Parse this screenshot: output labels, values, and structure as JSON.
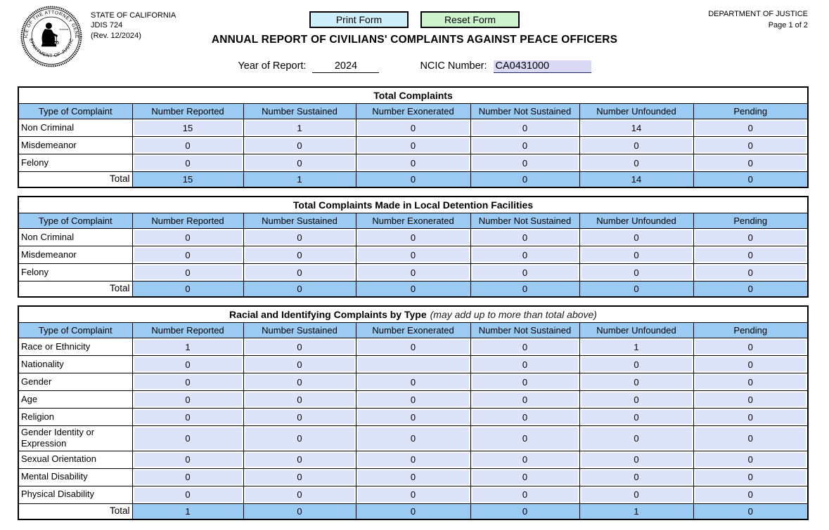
{
  "page": {
    "agency_block": {
      "line1": "STATE OF CALIFORNIA",
      "line2": "JDIS 724",
      "line3": "(Rev. 12/2024)"
    },
    "doj_block": {
      "line1": "DEPARTMENT OF JUSTICE",
      "line2": "Page 1 of 2"
    },
    "buttons": {
      "print": "Print Form",
      "reset": "Reset Form"
    },
    "title": "ANNUAL REPORT OF CIVILIANS' COMPLAINTS AGAINST PEACE OFFICERS",
    "fields": {
      "year_label": "Year of Report:",
      "year_value": "2024",
      "ncic_label": "NCIC Number:",
      "ncic_value": "CA0431000"
    },
    "seal": {
      "arc_top": "OFFICE OF THE ATTORNEY GENERAL",
      "arc_bottom": "DEPARTMENT OF JUSTICE",
      "motto": "liberty and justice under law"
    }
  },
  "colors": {
    "header_blue": "#9bcbf3",
    "field_lavender": "#dde3f9",
    "ncic_highlight": "#d9d9f6",
    "print_button": "#cdeffb",
    "reset_button": "#cdf4cd"
  },
  "columns": [
    "Type of Complaint",
    "Number Reported",
    "Number Sustained",
    "Number Exonerated",
    "Number Not Sustained",
    "Number Unfounded",
    "Pending"
  ],
  "tables": [
    {
      "title": "Total Complaints",
      "note": "",
      "rows": [
        {
          "label": "Non Criminal",
          "values": [
            "15",
            "1",
            "0",
            "0",
            "14",
            "0"
          ]
        },
        {
          "label": "Misdemeanor",
          "values": [
            "0",
            "0",
            "0",
            "0",
            "0",
            "0"
          ]
        },
        {
          "label": "Felony",
          "values": [
            "0",
            "0",
            "0",
            "0",
            "0",
            "0"
          ]
        }
      ],
      "total": {
        "label": "Total",
        "values": [
          "15",
          "1",
          "0",
          "0",
          "14",
          "0"
        ]
      }
    },
    {
      "title": "Total Complaints Made in Local Detention Facilities",
      "note": "",
      "rows": [
        {
          "label": "Non Criminal",
          "values": [
            "0",
            "0",
            "0",
            "0",
            "0",
            "0"
          ]
        },
        {
          "label": "Misdemeanor",
          "values": [
            "0",
            "0",
            "0",
            "0",
            "0",
            "0"
          ]
        },
        {
          "label": "Felony",
          "values": [
            "0",
            "0",
            "0",
            "0",
            "0",
            "0"
          ]
        }
      ],
      "total": {
        "label": "Total",
        "values": [
          "0",
          "0",
          "0",
          "0",
          "0",
          "0"
        ]
      }
    },
    {
      "title": "Racial and Identifying Complaints by Type",
      "note": "(may add up to more than total above)",
      "rows": [
        {
          "label": "Race or Ethnicity",
          "values": [
            "1",
            "0",
            "0",
            "0",
            "1",
            "0"
          ]
        },
        {
          "label": "Nationality",
          "values": [
            "0",
            "0",
            "",
            "0",
            "0",
            "0"
          ]
        },
        {
          "label": "Gender",
          "values": [
            "0",
            "0",
            "0",
            "0",
            "0",
            "0"
          ]
        },
        {
          "label": "Age",
          "values": [
            "0",
            "0",
            "0",
            "0",
            "0",
            "0"
          ]
        },
        {
          "label": "Religion",
          "values": [
            "0",
            "0",
            "0",
            "0",
            "0",
            "0"
          ]
        },
        {
          "label": "Gender Identity or Expression",
          "values": [
            "0",
            "0",
            "0",
            "0",
            "0",
            "0"
          ]
        },
        {
          "label": "Sexual Orientation",
          "values": [
            "0",
            "0",
            "0",
            "0",
            "0",
            "0"
          ]
        },
        {
          "label": "Mental Disability",
          "values": [
            "0",
            "0",
            "0",
            "0",
            "0",
            "0"
          ]
        },
        {
          "label": "Physical Disability",
          "values": [
            "0",
            "0",
            "0",
            "0",
            "0",
            "0"
          ]
        }
      ],
      "total": {
        "label": "Total",
        "values": [
          "1",
          "0",
          "0",
          "0",
          "1",
          "0"
        ]
      }
    }
  ]
}
